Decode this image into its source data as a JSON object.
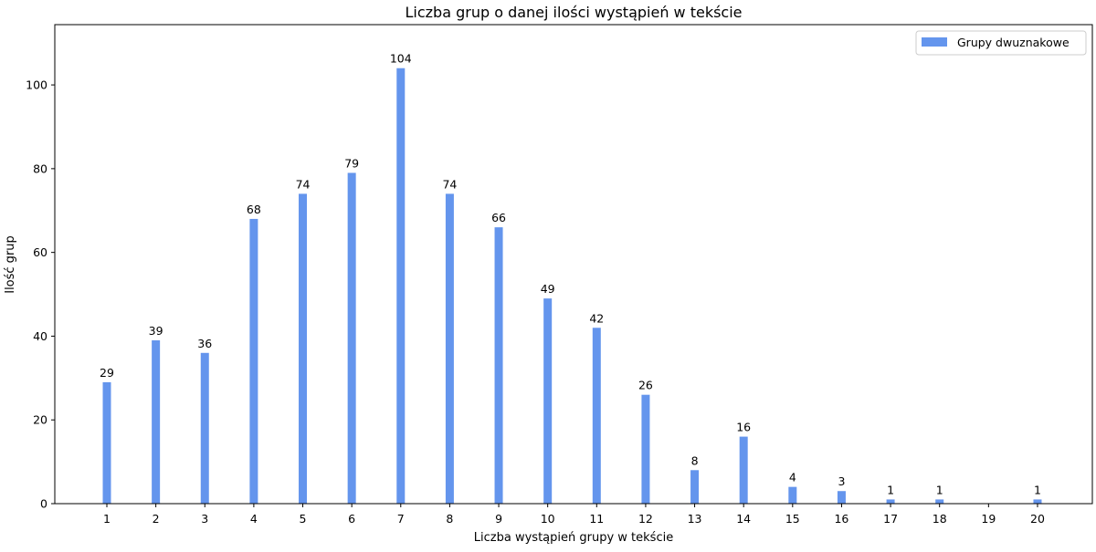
{
  "chart_data": {
    "type": "bar",
    "title": "Liczba grup o danej ilości wystąpień w tekście",
    "xlabel": "Liczba wystąpień grupy w tekście",
    "ylabel": "Ilość grup",
    "categories": [
      "1",
      "2",
      "3",
      "4",
      "5",
      "6",
      "7",
      "8",
      "9",
      "10",
      "11",
      "12",
      "13",
      "14",
      "15",
      "16",
      "17",
      "18",
      "19",
      "20"
    ],
    "series": [
      {
        "name": "Grupy dwuznakowe",
        "color": "#6495ED",
        "values": [
          29,
          39,
          36,
          68,
          74,
          79,
          104,
          74,
          66,
          49,
          42,
          26,
          8,
          16,
          4,
          3,
          1,
          1,
          0,
          1
        ],
        "labels": [
          "29",
          "39",
          "36",
          "68",
          "74",
          "79",
          "104",
          "74",
          "66",
          "49",
          "42",
          "26",
          "8",
          "16",
          "4",
          "3",
          "1",
          "1",
          "",
          "1"
        ]
      }
    ],
    "ylim": [
      0,
      114.4
    ],
    "yticks": [
      0,
      20,
      40,
      60,
      80,
      100
    ],
    "grid": false,
    "legend_position": "top-right"
  }
}
